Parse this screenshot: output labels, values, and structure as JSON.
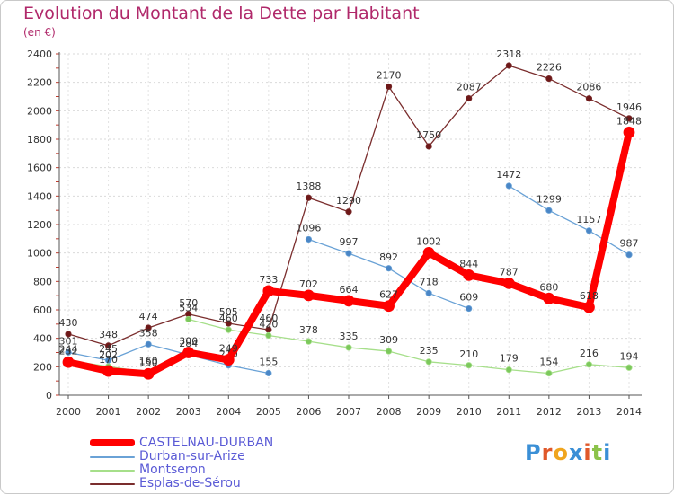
{
  "title": "Evolution du Montant de la Dette par Habitant",
  "subtitle": "(en €)",
  "logo_text": "Proxiti",
  "chart_data": {
    "type": "line",
    "x": [
      "2000",
      "2001",
      "2002",
      "2003",
      "2004",
      "2005",
      "2006",
      "2007",
      "2008",
      "2009",
      "2010",
      "2011",
      "2012",
      "2013",
      "2014"
    ],
    "ylim": [
      0,
      2400
    ],
    "yticks": [
      0,
      200,
      400,
      600,
      800,
      1000,
      1200,
      1400,
      1600,
      1800,
      2000,
      2200,
      2400
    ],
    "grid": true,
    "legend_position": "bottom-left",
    "series": [
      {
        "name": "Esplas-de-Sérou",
        "color": "#7a2d2d",
        "marker": "#6e1818",
        "values": [
          430,
          348,
          474,
          570,
          505,
          460,
          1388,
          1290,
          2170,
          1750,
          2087,
          2318,
          2226,
          2086,
          1946
        ]
      },
      {
        "name": "Durban-sur-Arize",
        "color": "#6aa2d6",
        "marker": "#4a86c6",
        "values": [
          301,
          245,
          358,
          284,
          210,
          155,
          1096,
          997,
          892,
          718,
          609,
          1472,
          1299,
          1157,
          987
        ]
      },
      {
        "name": "Montseron",
        "color": "#a6df8a",
        "marker": "#7cc85c",
        "values": [
          244,
          202,
          160,
          534,
          460,
          420,
          378,
          335,
          309,
          235,
          210,
          179,
          154,
          216,
          194
        ]
      },
      {
        "name": "CASTELNAU-DURBAN",
        "color": "#ff0000",
        "marker": "#ff0000",
        "values": [
          232,
          170,
          150,
          300,
          249,
          733,
          702,
          664,
          627,
          1002,
          844,
          787,
          680,
          618,
          1848
        ]
      }
    ],
    "gaps": {
      "Esplas-de-Sérou": [],
      "Durban-sur-Arize": [
        [
          5,
          6
        ],
        [
          10,
          11
        ]
      ],
      "Montseron": [
        [
          2,
          3
        ]
      ],
      "CASTELNAU-DURBAN": []
    }
  },
  "legend": [
    {
      "label": "CASTELNAU-DURBAN",
      "color": "#ff0000"
    },
    {
      "label": "Durban-sur-Arize",
      "color": "#6aa2d6"
    },
    {
      "label": "Montseron",
      "color": "#a6df8a"
    },
    {
      "label": "Esplas-de-Sérou",
      "color": "#7a2d2d"
    }
  ]
}
